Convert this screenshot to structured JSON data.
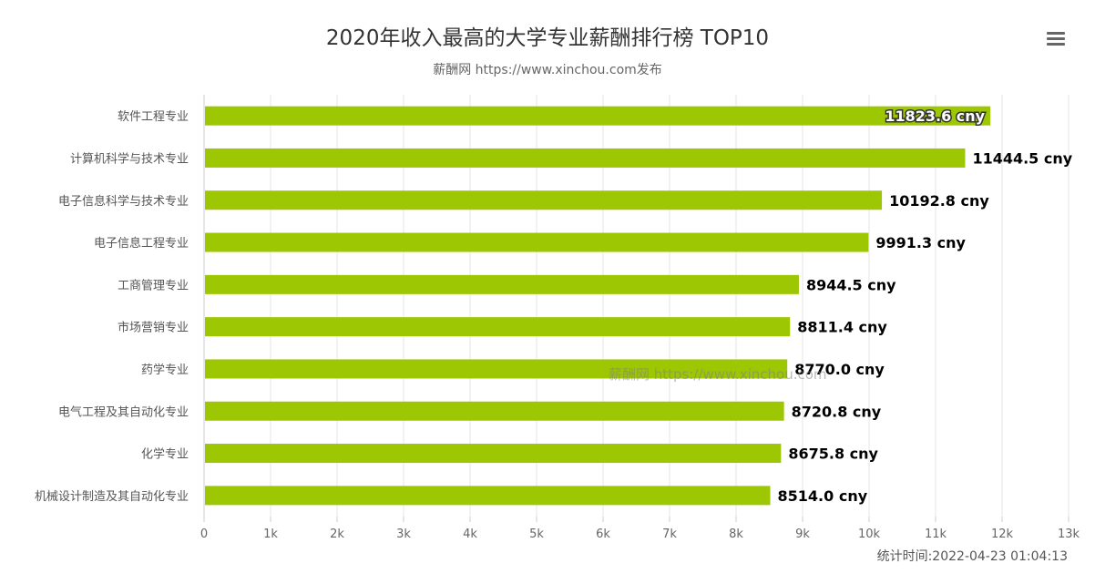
{
  "header": {
    "title": "2020年收入最高的大学专业薪酬排行榜 TOP10",
    "subtitle": "薪酬网 https://www.xinchou.com发布"
  },
  "menu": {
    "icon": "hamburger-menu-icon"
  },
  "footer": {
    "timestamp": "统计时间:2022-04-23 01:04:13"
  },
  "watermark": {
    "text": "薪酬网 https://www.xinchou.com"
  },
  "colors": {
    "bar": "#9dc603",
    "grid": "#e6e6e6",
    "axis": "#cccccc"
  },
  "chart_data": {
    "type": "bar",
    "orientation": "horizontal",
    "title": "2020年收入最高的大学专业薪酬排行榜 TOP10",
    "subtitle": "薪酬网 https://www.xinchou.com发布",
    "categories": [
      "软件工程专业",
      "计算机科学与技术专业",
      "电子信息科学与技术专业",
      "电子信息工程专业",
      "工商管理专业",
      "市场营销专业",
      "药学专业",
      "电气工程及其自动化专业",
      "化学专业",
      "机械设计制造及其自动化专业"
    ],
    "values": [
      11823.6,
      11444.5,
      10192.8,
      9991.3,
      8944.5,
      8811.4,
      8770.0,
      8720.8,
      8675.8,
      8514.0
    ],
    "value_labels": [
      "11823.6 cny",
      "11444.5 cny",
      "10192.8 cny",
      "9991.3 cny",
      "8944.5 cny",
      "8811.4 cny",
      "8770.0 cny",
      "8720.8 cny",
      "8675.8 cny",
      "8514.0 cny"
    ],
    "xlim": [
      0,
      13000
    ],
    "ticks": [
      0,
      1000,
      2000,
      3000,
      4000,
      5000,
      6000,
      7000,
      8000,
      9000,
      10000,
      11000,
      12000,
      13000
    ],
    "tick_labels": [
      "0",
      "1k",
      "2k",
      "3k",
      "4k",
      "5k",
      "6k",
      "7k",
      "8k",
      "9k",
      "10k",
      "11k",
      "12k",
      "13k"
    ],
    "grid": true,
    "legend": false
  }
}
